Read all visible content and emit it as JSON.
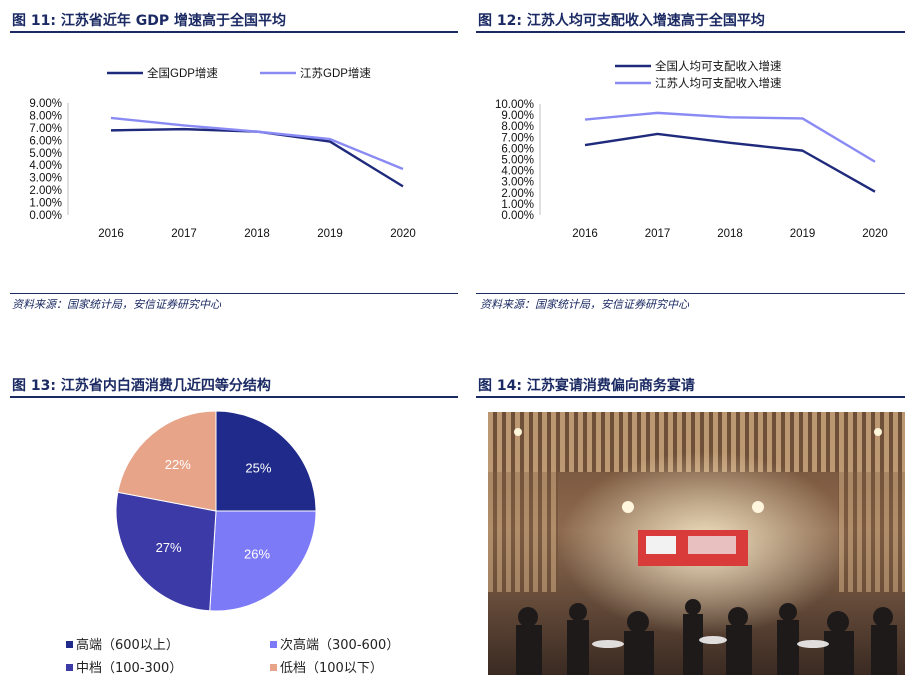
{
  "panels": {
    "fig11": {
      "title": "图 11:  江苏省近年 GDP 增速高于全国平均",
      "source": "资料来源：国家统计局，安信证券研究中心"
    },
    "fig12": {
      "title": "图 12:  江苏人均可支配收入增速高于全国平均",
      "source": "资料来源：国家统计局，安信证券研究中心"
    },
    "fig13": {
      "title": "图 13:  江苏省内白酒消费几近四等分结构"
    },
    "fig14": {
      "title": "图 14:  江苏宴请消费偏向商务宴请"
    }
  },
  "chart_data": [
    {
      "id": "fig11",
      "type": "line",
      "x": [
        "2016",
        "2017",
        "2018",
        "2019",
        "2020"
      ],
      "series": [
        {
          "name": "全国GDP增速",
          "color": "#1f2a7c",
          "values": [
            6.8,
            6.9,
            6.7,
            5.9,
            2.3
          ]
        },
        {
          "name": "江苏GDP增速",
          "color": "#8a8af5",
          "values": [
            7.8,
            7.2,
            6.7,
            6.1,
            3.7
          ]
        }
      ],
      "yticks": [
        "9.00%",
        "8.00%",
        "7.00%",
        "6.00%",
        "5.00%",
        "4.00%",
        "3.00%",
        "2.00%",
        "1.00%",
        "0.00%"
      ],
      "ylim": [
        0,
        9
      ],
      "legend_position": "top"
    },
    {
      "id": "fig12",
      "type": "line",
      "x": [
        "2016",
        "2017",
        "2018",
        "2019",
        "2020"
      ],
      "series": [
        {
          "name": "全国人均可支配收入增速",
          "color": "#1f2a7c",
          "values": [
            6.3,
            7.3,
            6.5,
            5.8,
            2.1
          ]
        },
        {
          "name": "江苏人均可支配收入增速",
          "color": "#8a8af5",
          "values": [
            8.6,
            9.2,
            8.8,
            8.7,
            4.8
          ]
        }
      ],
      "yticks": [
        "10.00%",
        "9.00%",
        "8.00%",
        "7.00%",
        "6.00%",
        "5.00%",
        "4.00%",
        "3.00%",
        "2.00%",
        "1.00%",
        "0.00%"
      ],
      "ylim": [
        0,
        10
      ],
      "legend_position": "top"
    },
    {
      "id": "fig13",
      "type": "pie",
      "slices": [
        {
          "name": "高端（600以上）",
          "value": 25,
          "label": "25%",
          "color": "#1f2a8a"
        },
        {
          "name": "次高端（300-600）",
          "value": 26,
          "label": "26%",
          "color": "#7d7af7"
        },
        {
          "name": "中档（100-300）",
          "value": 27,
          "label": "27%",
          "color": "#3c3aa6"
        },
        {
          "name": "低档（100以下）",
          "value": 22,
          "label": "22%",
          "color": "#e7a489"
        }
      ],
      "legend_position": "bottom"
    }
  ],
  "photo": {
    "icon": "banquet-photo",
    "colors": {
      "ceiling": "#8d6a4f",
      "screen": "#d93b3b",
      "light": "#f6e8c8"
    }
  }
}
